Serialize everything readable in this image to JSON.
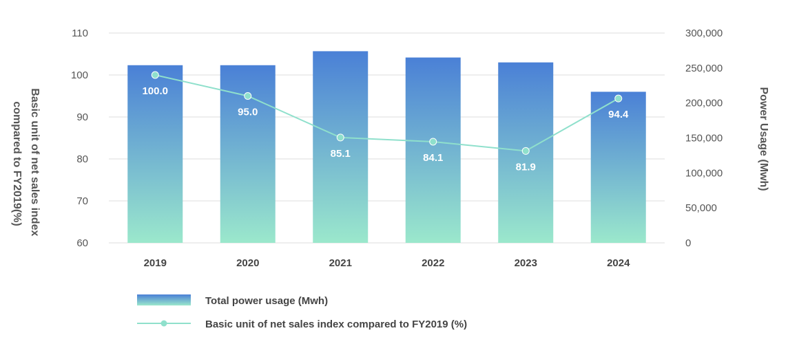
{
  "chart_data": {
    "type": "bar+line",
    "categories": [
      "2019",
      "2020",
      "2021",
      "2022",
      "2023",
      "2024"
    ],
    "series": [
      {
        "name": "Total power usage (Mwh)",
        "type": "bar",
        "axis": "right",
        "values": [
          254000,
          254000,
          274000,
          265000,
          258000,
          216000
        ]
      },
      {
        "name": "Basic unit of net sales index compared to FY2019 (%)",
        "type": "line",
        "axis": "left",
        "values": [
          100.0,
          95.0,
          85.1,
          84.1,
          81.9,
          94.4
        ],
        "labels": [
          "100.0",
          "95.0",
          "85.1",
          "84.1",
          "81.9",
          "94.4"
        ]
      }
    ],
    "left_axis": {
      "title_lines": [
        "Basic unit of net sales index",
        "compared to FY2019(%)"
      ],
      "ylim": [
        60,
        110
      ],
      "ticks": [
        "60",
        "70",
        "80",
        "90",
        "100",
        "110"
      ]
    },
    "right_axis": {
      "title": "Power Usage (Mwh)",
      "ylim": [
        0,
        300000
      ],
      "ticks": [
        "0",
        "50,000",
        "100,000",
        "150,000",
        "200,000",
        "250,000",
        "300,000"
      ]
    },
    "grid": true,
    "legend_position": "bottom-left",
    "colors": {
      "bar_top": "#4a80d6",
      "bar_bottom": "#9be8cc",
      "line": "#8fe0cc",
      "grid": "#dddddd"
    }
  }
}
